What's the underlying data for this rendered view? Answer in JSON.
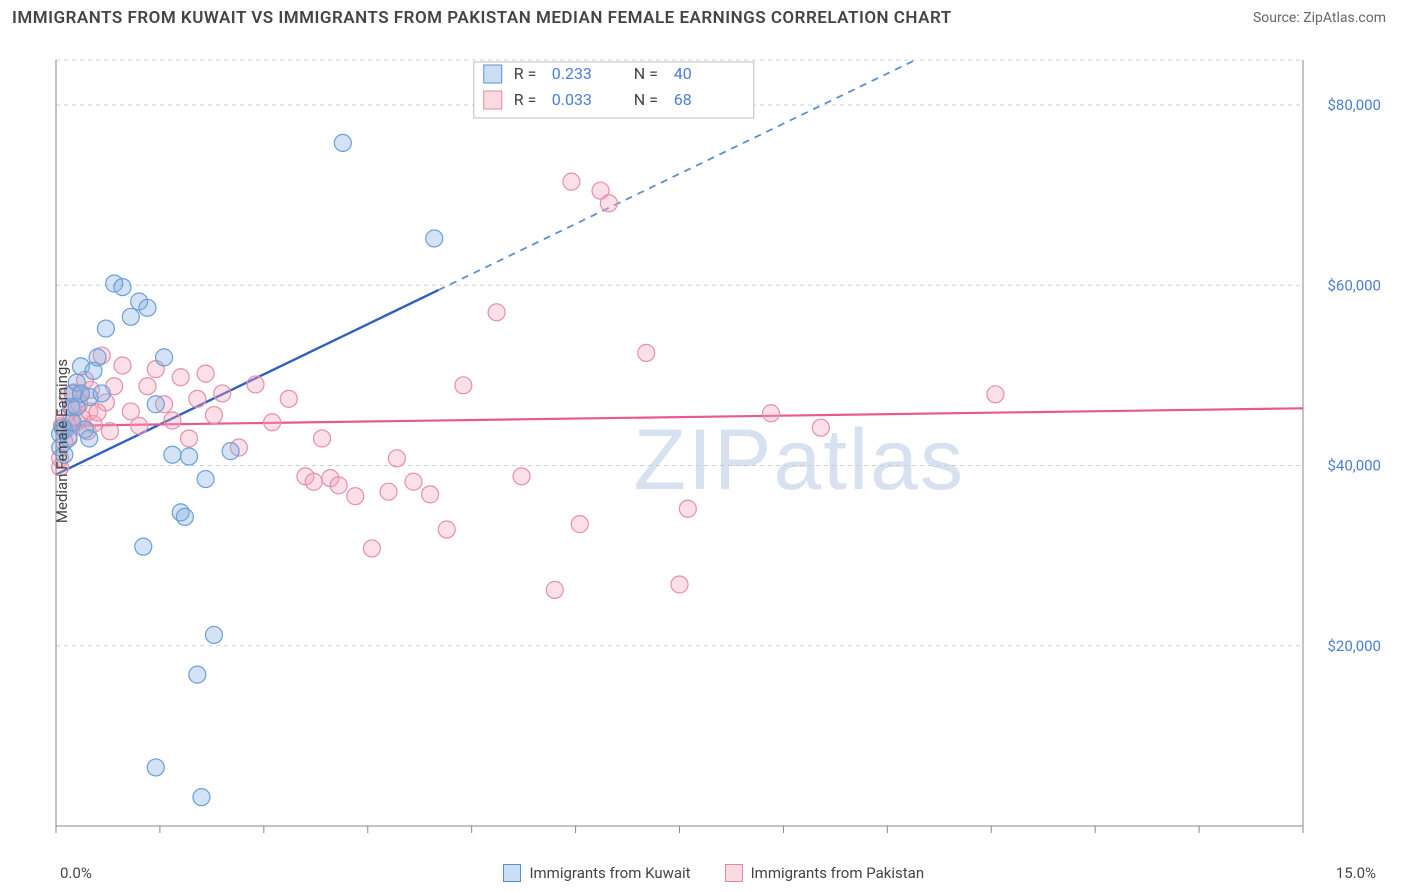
{
  "title": "IMMIGRANTS FROM KUWAIT VS IMMIGRANTS FROM PAKISTAN MEDIAN FEMALE EARNINGS CORRELATION CHART",
  "source": "Source: ZipAtlas.com",
  "y_axis_label": "Median Female Earnings",
  "watermark": "ZIPatlas",
  "chart": {
    "type": "scatter",
    "background_color": "#ffffff",
    "grid_color": "#d0d0d0",
    "grid_dash": "4 4",
    "axis_color": "#888888",
    "xlim": [
      0.0,
      15.0
    ],
    "ylim": [
      0,
      85000
    ],
    "x_range_labels": [
      "0.0%",
      "15.0%"
    ],
    "y_ticks": [
      20000,
      40000,
      60000,
      80000
    ],
    "y_tick_labels": [
      "$20,000",
      "$40,000",
      "$60,000",
      "$80,000"
    ],
    "x_minor_ticks_count": 12,
    "marker_radius": 8.5,
    "series": [
      {
        "key": "kuwait",
        "label": "Immigrants from Kuwait",
        "marker_fill": "rgba(130,175,225,0.35)",
        "marker_stroke": "#6a9fd8",
        "R": 0.233,
        "N": 40,
        "trend": {
          "intercept": 39000,
          "slope_per_pct": 4450,
          "solid_until_x": 4.6,
          "solid_color": "#2e5fc2",
          "dashed_color": "#5b8fd0"
        },
        "points": [
          [
            0.05,
            42000
          ],
          [
            0.05,
            43500
          ],
          [
            0.08,
            44200
          ],
          [
            0.1,
            41200
          ],
          [
            0.1,
            44000
          ],
          [
            0.15,
            43000
          ],
          [
            0.18,
            46500
          ],
          [
            0.2,
            48000
          ],
          [
            0.2,
            44800
          ],
          [
            0.25,
            49200
          ],
          [
            0.25,
            46500
          ],
          [
            0.3,
            48000
          ],
          [
            0.3,
            51000
          ],
          [
            0.35,
            44000
          ],
          [
            0.4,
            47600
          ],
          [
            0.4,
            43000
          ],
          [
            0.45,
            50500
          ],
          [
            0.5,
            52000
          ],
          [
            0.55,
            48000
          ],
          [
            0.6,
            55200
          ],
          [
            0.7,
            60200
          ],
          [
            0.8,
            59800
          ],
          [
            0.9,
            56500
          ],
          [
            1.0,
            58200
          ],
          [
            1.1,
            57500
          ],
          [
            1.2,
            46800
          ],
          [
            1.3,
            52000
          ],
          [
            1.4,
            41200
          ],
          [
            1.5,
            34800
          ],
          [
            1.55,
            34300
          ],
          [
            1.6,
            41000
          ],
          [
            1.7,
            16800
          ],
          [
            1.8,
            38500
          ],
          [
            1.9,
            21200
          ],
          [
            2.1,
            41600
          ],
          [
            1.05,
            31000
          ],
          [
            1.2,
            6500
          ],
          [
            1.75,
            3200
          ],
          [
            3.45,
            75800
          ],
          [
            4.55,
            65200
          ]
        ]
      },
      {
        "key": "pakistan",
        "label": "Immigrants from Pakistan",
        "marker_fill": "rgba(245,165,185,0.35)",
        "marker_stroke": "#e78fa8",
        "R": 0.033,
        "N": 68,
        "trend": {
          "intercept": 44400,
          "slope_per_pct": 130,
          "color": "#e65a8e"
        },
        "points": [
          [
            0.05,
            39800
          ],
          [
            0.05,
            40800
          ],
          [
            0.07,
            44400
          ],
          [
            0.1,
            42600
          ],
          [
            0.1,
            45300
          ],
          [
            0.12,
            44000
          ],
          [
            0.15,
            43200
          ],
          [
            0.15,
            47800
          ],
          [
            0.18,
            45000
          ],
          [
            0.2,
            46400
          ],
          [
            0.22,
            48100
          ],
          [
            0.25,
            44800
          ],
          [
            0.28,
            46800
          ],
          [
            0.3,
            47900
          ],
          [
            0.32,
            45200
          ],
          [
            0.35,
            49500
          ],
          [
            0.38,
            43800
          ],
          [
            0.4,
            46000
          ],
          [
            0.42,
            48400
          ],
          [
            0.45,
            44600
          ],
          [
            0.5,
            45900
          ],
          [
            0.55,
            52200
          ],
          [
            0.6,
            47000
          ],
          [
            0.65,
            43800
          ],
          [
            0.7,
            48800
          ],
          [
            0.8,
            51100
          ],
          [
            0.9,
            46000
          ],
          [
            1.0,
            44400
          ],
          [
            1.1,
            48800
          ],
          [
            1.2,
            50700
          ],
          [
            1.3,
            46800
          ],
          [
            1.4,
            45000
          ],
          [
            1.5,
            49800
          ],
          [
            1.6,
            43000
          ],
          [
            1.7,
            47400
          ],
          [
            1.8,
            50200
          ],
          [
            1.9,
            45600
          ],
          [
            2.0,
            48000
          ],
          [
            2.2,
            42000
          ],
          [
            2.4,
            49000
          ],
          [
            2.6,
            44800
          ],
          [
            2.8,
            47400
          ],
          [
            3.0,
            38800
          ],
          [
            3.1,
            38200
          ],
          [
            3.2,
            43000
          ],
          [
            3.3,
            38600
          ],
          [
            3.4,
            37800
          ],
          [
            3.6,
            36600
          ],
          [
            3.8,
            30800
          ],
          [
            4.0,
            37100
          ],
          [
            4.1,
            40800
          ],
          [
            4.3,
            38200
          ],
          [
            4.5,
            36800
          ],
          [
            4.7,
            32900
          ],
          [
            4.9,
            48900
          ],
          [
            5.3,
            57000
          ],
          [
            5.6,
            38800
          ],
          [
            6.0,
            26200
          ],
          [
            6.2,
            71500
          ],
          [
            6.3,
            33500
          ],
          [
            6.55,
            70500
          ],
          [
            6.65,
            69100
          ],
          [
            7.1,
            52500
          ],
          [
            7.5,
            26800
          ],
          [
            7.6,
            35200
          ],
          [
            8.6,
            45800
          ],
          [
            9.2,
            44200
          ],
          [
            11.3,
            47900
          ]
        ]
      }
    ],
    "stats_box": {
      "bg": "#ffffff",
      "border": "#bdbdbd",
      "rows": [
        {
          "swatch": "b",
          "r_label": "R =",
          "r_value": "0.233",
          "n_label": "N =",
          "n_value": "40"
        },
        {
          "swatch": "p",
          "r_label": "R =",
          "r_value": "0.033",
          "n_label": "N =",
          "n_value": "68"
        }
      ]
    },
    "y_tick_color": "#4a7dd6",
    "x_label_color": "#4a7dd6",
    "font_family": "Arial, sans-serif",
    "label_fontsize": 15,
    "title_fontsize": 17
  },
  "legend": {
    "items": [
      {
        "swatch": "b",
        "label": "Immigrants from Kuwait"
      },
      {
        "swatch": "p",
        "label": "Immigrants from Pakistan"
      }
    ]
  }
}
